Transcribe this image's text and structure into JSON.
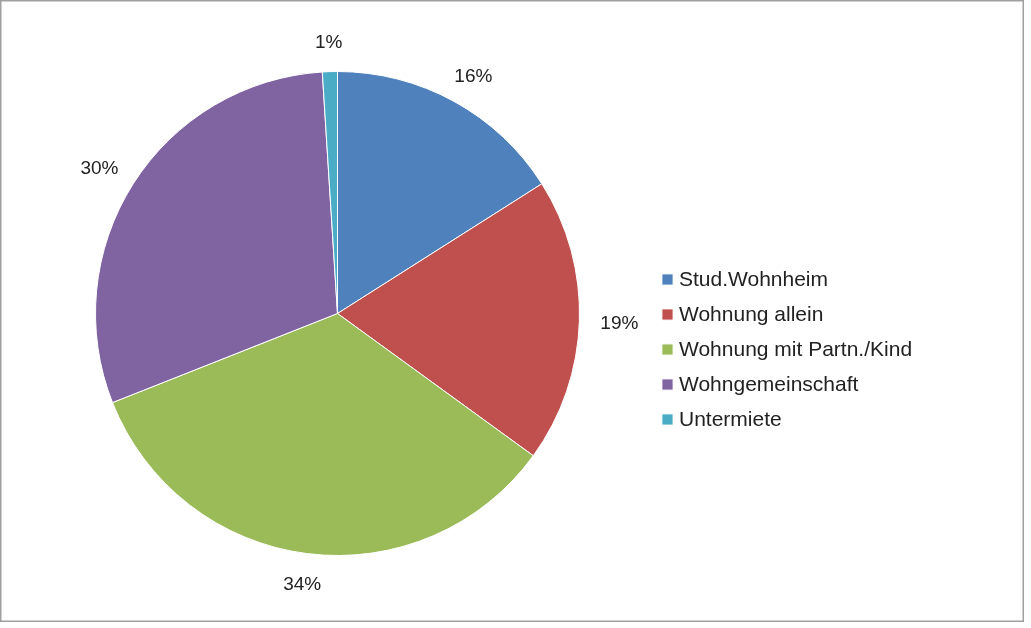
{
  "chart_data": {
    "type": "pie",
    "categories": [
      "Stud.Wohnheim",
      "Wohnung allein",
      "Wohnung mit Partn./Kind",
      "Wohngemeinschaft",
      "Untermiete"
    ],
    "values": [
      16,
      19,
      34,
      30,
      1
    ],
    "colors": [
      "#4f81bd",
      "#c0504d",
      "#9bbb59",
      "#8064a2",
      "#4bacc6"
    ],
    "value_labels": [
      "16%",
      "19%",
      "34%",
      "30%",
      "1%"
    ],
    "legend": "right"
  }
}
